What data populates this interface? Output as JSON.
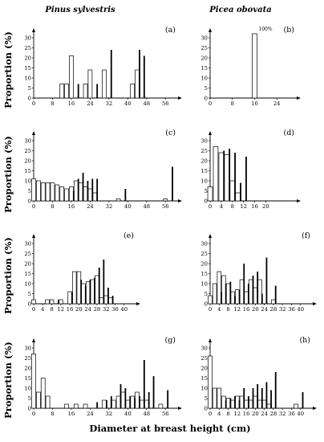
{
  "figure": {
    "col_titles": [
      "Pinus sylvestris",
      "Picea obovata"
    ],
    "ylabel": "Proportion (%)",
    "xlabel": "Diameter at breast height (cm)"
  },
  "chart_data": [
    {
      "id": "a",
      "type": "bar",
      "label": "(a)",
      "col": 0,
      "row": 0,
      "xlim": [
        0,
        60
      ],
      "xticks": [
        0,
        8,
        16,
        24,
        32,
        40,
        48,
        56
      ],
      "ylim": [
        0,
        32
      ],
      "yticks": [
        0,
        5,
        10,
        15,
        20,
        25,
        30
      ],
      "series": [
        {
          "style": "open",
          "x": [
            12,
            14,
            16,
            22,
            24,
            30,
            42,
            44
          ],
          "values": [
            7,
            7,
            21,
            7,
            14,
            14,
            7,
            14
          ]
        },
        {
          "style": "solid",
          "x": [
            18,
            26,
            32,
            44,
            46
          ],
          "values": [
            7,
            7,
            24,
            24,
            21
          ]
        }
      ]
    },
    {
      "id": "b",
      "type": "bar",
      "label": "(b)",
      "col": 1,
      "row": 0,
      "annotation": "100%",
      "xlim": [
        0,
        30
      ],
      "xticks": [
        0,
        8,
        16,
        24
      ],
      "ylim": [
        0,
        32
      ],
      "yticks": [
        0,
        5,
        10,
        15,
        20,
        25,
        30
      ],
      "series": [
        {
          "style": "open",
          "x": [
            16
          ],
          "values": [
            32
          ]
        },
        {
          "style": "solid",
          "x": [],
          "values": []
        }
      ]
    },
    {
      "id": "c",
      "type": "bar",
      "label": "(c)",
      "col": 0,
      "row": 1,
      "xlim": [
        0,
        60
      ],
      "xticks": [
        0,
        8,
        16,
        24,
        32,
        40,
        48,
        56
      ],
      "ylim": [
        0,
        32
      ],
      "yticks": [
        0,
        5,
        10,
        15,
        20,
        25,
        30
      ],
      "series": [
        {
          "style": "open",
          "x": [
            0,
            2,
            4,
            6,
            8,
            10,
            12,
            14,
            16,
            18,
            20,
            22,
            24,
            26,
            36,
            56
          ],
          "values": [
            11,
            10,
            9,
            9,
            9,
            8,
            7,
            6,
            7,
            10,
            9,
            7,
            6,
            4,
            1,
            1
          ]
        },
        {
          "style": "solid",
          "x": [
            16,
            18,
            20,
            22,
            24,
            26,
            38,
            58
          ],
          "values": [
            5,
            11,
            14,
            10,
            11,
            11,
            6,
            17
          ]
        }
      ]
    },
    {
      "id": "d",
      "type": "bar",
      "label": "(d)",
      "col": 1,
      "row": 1,
      "xlim": [
        0,
        30
      ],
      "xticks": [
        0,
        4,
        8,
        12,
        16,
        20
      ],
      "ylim": [
        0,
        32
      ],
      "yticks": [
        0,
        5,
        10,
        15,
        20,
        25,
        30
      ],
      "series": [
        {
          "style": "open",
          "x": [
            0,
            2,
            4,
            6,
            8,
            10
          ],
          "values": [
            7,
            27,
            24,
            23,
            10,
            4
          ]
        },
        {
          "style": "solid",
          "x": [
            4,
            6,
            8,
            10,
            12
          ],
          "values": [
            25,
            26,
            24,
            9,
            22
          ]
        }
      ]
    },
    {
      "id": "e",
      "type": "bar",
      "label": "(e)",
      "col": 0,
      "row": 2,
      "xlim": [
        0,
        44
      ],
      "xticks": [
        0,
        4,
        8,
        12,
        16,
        20,
        24,
        28,
        32,
        36,
        40
      ],
      "ylim": [
        0,
        32
      ],
      "yticks": [
        0,
        5,
        10,
        15,
        20,
        25,
        30
      ],
      "series": [
        {
          "style": "open",
          "x": [
            0,
            6,
            8,
            12,
            16,
            18,
            20,
            22,
            24,
            26,
            28,
            30,
            32,
            34
          ],
          "values": [
            2,
            2,
            2,
            2,
            6,
            16,
            16,
            10,
            11,
            12,
            14,
            3,
            4,
            3
          ]
        },
        {
          "style": "solid",
          "x": [
            10,
            16,
            20,
            22,
            24,
            26,
            28,
            30,
            32,
            34
          ],
          "values": [
            2,
            6,
            12,
            9,
            12,
            13,
            18,
            22,
            8,
            4
          ]
        }
      ]
    },
    {
      "id": "f",
      "type": "bar",
      "label": "(f)",
      "col": 1,
      "row": 2,
      "xlim": [
        0,
        44
      ],
      "xticks": [
        0,
        4,
        8,
        12,
        16,
        20,
        24,
        28,
        32,
        36,
        40
      ],
      "ylim": [
        0,
        32
      ],
      "yticks": [
        0,
        5,
        10,
        15,
        20,
        25,
        30
      ],
      "series": [
        {
          "style": "open",
          "x": [
            0,
            2,
            4,
            6,
            8,
            10,
            12,
            14,
            16,
            18,
            20,
            22,
            28
          ],
          "values": [
            4,
            10,
            16,
            14,
            10,
            6,
            7,
            12,
            6,
            12,
            8,
            12,
            2
          ]
        },
        {
          "style": "solid",
          "x": [
            4,
            6,
            8,
            10,
            12,
            14,
            16,
            18,
            20,
            22,
            24,
            28
          ],
          "values": [
            6,
            10,
            11,
            4,
            7,
            20,
            10,
            14,
            16,
            5,
            23,
            9
          ]
        }
      ]
    },
    {
      "id": "g",
      "type": "bar",
      "label": "(g)",
      "col": 0,
      "row": 3,
      "xlim": [
        0,
        60
      ],
      "xticks": [
        0,
        8,
        16,
        24,
        32,
        40,
        48,
        56
      ],
      "ylim": [
        0,
        32
      ],
      "yticks": [
        0,
        5,
        10,
        15,
        20,
        25,
        30
      ],
      "series": [
        {
          "style": "open",
          "x": [
            0,
            2,
            4,
            6,
            14,
            18,
            22,
            30,
            34,
            36,
            38,
            40,
            42,
            44,
            46,
            48,
            54
          ],
          "values": [
            27,
            8,
            15,
            6,
            2,
            2,
            2,
            4,
            4,
            6,
            8,
            4,
            6,
            8,
            4,
            4,
            2
          ]
        },
        {
          "style": "solid",
          "x": [
            26,
            30,
            32,
            36,
            38,
            40,
            42,
            44,
            46,
            48,
            50,
            56
          ],
          "values": [
            3,
            4,
            6,
            12,
            10,
            6,
            5,
            6,
            24,
            8,
            16,
            9
          ]
        }
      ]
    },
    {
      "id": "h",
      "type": "bar",
      "label": "(h)",
      "col": 1,
      "row": 3,
      "xlim": [
        0,
        44
      ],
      "xticks": [
        0,
        4,
        8,
        12,
        16,
        20,
        24,
        28,
        32,
        36,
        40
      ],
      "ylim": [
        0,
        32
      ],
      "yticks": [
        0,
        5,
        10,
        15,
        20,
        25,
        30
      ],
      "series": [
        {
          "style": "open",
          "x": [
            0,
            2,
            4,
            6,
            8,
            10,
            12,
            14,
            16,
            18,
            20,
            22,
            24,
            26,
            38
          ],
          "values": [
            26,
            10,
            10,
            6,
            5,
            4,
            6,
            6,
            4,
            4,
            6,
            4,
            4,
            2,
            2
          ]
        },
        {
          "style": "solid",
          "x": [
            6,
            8,
            10,
            12,
            14,
            16,
            18,
            20,
            22,
            24,
            26,
            28,
            40
          ],
          "values": [
            4,
            5,
            6,
            4,
            10,
            6,
            10,
            12,
            10,
            13,
            9,
            18,
            8
          ]
        }
      ]
    }
  ]
}
